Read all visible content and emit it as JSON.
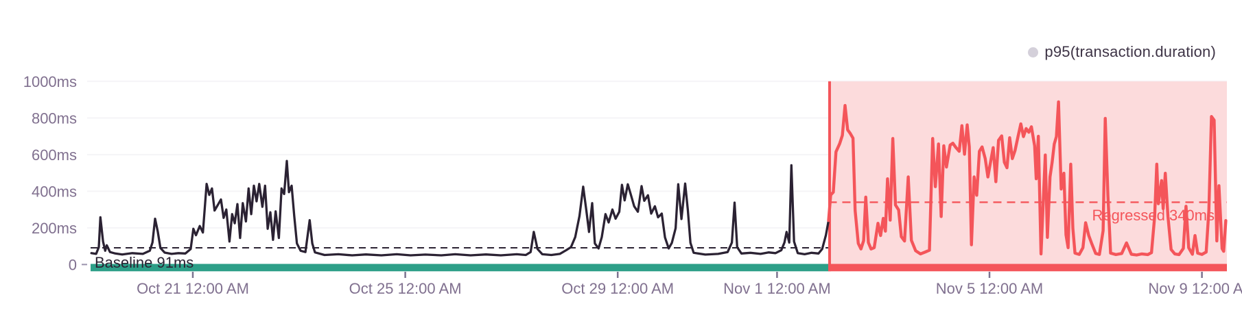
{
  "legend": {
    "label": "p95(transaction.duration)",
    "marker_color": "#d4d0da"
  },
  "colors": {
    "series_dark": "#2b2233",
    "series_red": "#f4555a",
    "regression_fill": "#fcdbdc",
    "baseline_bar_green": "#2d9f88",
    "grid_line": "#f5f4f7",
    "axis_label": "#80708f",
    "tick_mark": "#7c7490",
    "annotation_dark_text": "#2b2233",
    "annotation_red_text": "#f4555a"
  },
  "chart_data": {
    "type": "line",
    "unit": "ms",
    "series_name": "p95(transaction.duration)",
    "y_axis": {
      "range_ms": [
        0,
        1000
      ],
      "grid": true,
      "ticks": [
        {
          "label": "1000ms",
          "value": 1000
        },
        {
          "label": "800ms",
          "value": 800
        },
        {
          "label": "600ms",
          "value": 600
        },
        {
          "label": "400ms",
          "value": 400
        },
        {
          "label": "200ms",
          "value": 200
        },
        {
          "label": "0",
          "value": 0
        }
      ]
    },
    "x_axis": {
      "unit": "days_from_Oct_21_12:00_AM",
      "range_days": [
        -1.91,
        19.45
      ],
      "ticks": [
        {
          "label": "Oct 21 12:00 AM",
          "day": 0
        },
        {
          "label": "Oct 25 12:00 AM",
          "day": 4
        },
        {
          "label": "Oct 29 12:00 AM",
          "day": 8
        },
        {
          "label": "Nov 1 12:00 AM",
          "day": 11
        },
        {
          "label": "Nov 5 12:00 AM",
          "day": 15
        },
        {
          "label": "Nov 9 12:00 AM",
          "day": 19
        }
      ]
    },
    "baseline": {
      "label": "Baseline 91ms",
      "value_ms": 91
    },
    "regression": {
      "label": "Regressed 340ms",
      "value_ms": 340,
      "start_day": 11.97
    },
    "legend_position": "top-right",
    "segments": {
      "baseline_points": [
        [
          -1.91,
          62
        ],
        [
          -1.82,
          58
        ],
        [
          -1.77,
          95
        ],
        [
          -1.74,
          258
        ],
        [
          -1.69,
          125
        ],
        [
          -1.65,
          75
        ],
        [
          -1.62,
          105
        ],
        [
          -1.56,
          68
        ],
        [
          -1.46,
          60
        ],
        [
          -1.33,
          55
        ],
        [
          -1.14,
          62
        ],
        [
          -0.94,
          58
        ],
        [
          -0.81,
          75
        ],
        [
          -0.76,
          120
        ],
        [
          -0.71,
          250
        ],
        [
          -0.66,
          180
        ],
        [
          -0.61,
          90
        ],
        [
          -0.53,
          65
        ],
        [
          -0.4,
          58
        ],
        [
          -0.27,
          62
        ],
        [
          -0.14,
          60
        ],
        [
          -0.04,
          85
        ],
        [
          0.01,
          195
        ],
        [
          0.06,
          160
        ],
        [
          0.13,
          210
        ],
        [
          0.19,
          175
        ],
        [
          0.26,
          440
        ],
        [
          0.31,
          380
        ],
        [
          0.36,
          415
        ],
        [
          0.41,
          295
        ],
        [
          0.48,
          330
        ],
        [
          0.53,
          355
        ],
        [
          0.58,
          255
        ],
        [
          0.63,
          300
        ],
        [
          0.69,
          125
        ],
        [
          0.74,
          275
        ],
        [
          0.79,
          225
        ],
        [
          0.84,
          330
        ],
        [
          0.89,
          145
        ],
        [
          0.94,
          335
        ],
        [
          1.0,
          235
        ],
        [
          1.05,
          415
        ],
        [
          1.1,
          275
        ],
        [
          1.15,
          430
        ],
        [
          1.2,
          345
        ],
        [
          1.25,
          440
        ],
        [
          1.31,
          315
        ],
        [
          1.36,
          430
        ],
        [
          1.41,
          195
        ],
        [
          1.46,
          285
        ],
        [
          1.51,
          135
        ],
        [
          1.56,
          290
        ],
        [
          1.62,
          145
        ],
        [
          1.67,
          415
        ],
        [
          1.72,
          385
        ],
        [
          1.77,
          565
        ],
        [
          1.81,
          395
        ],
        [
          1.86,
          430
        ],
        [
          1.91,
          265
        ],
        [
          1.96,
          115
        ],
        [
          2.03,
          75
        ],
        [
          2.12,
          68
        ],
        [
          2.2,
          242
        ],
        [
          2.25,
          115
        ],
        [
          2.3,
          66
        ],
        [
          2.48,
          52
        ],
        [
          2.74,
          56
        ],
        [
          3.0,
          50
        ],
        [
          3.26,
          55
        ],
        [
          3.55,
          50
        ],
        [
          3.84,
          56
        ],
        [
          4.1,
          50
        ],
        [
          4.38,
          54
        ],
        [
          4.68,
          50
        ],
        [
          4.94,
          56
        ],
        [
          5.23,
          50
        ],
        [
          5.52,
          55
        ],
        [
          5.8,
          50
        ],
        [
          6.1,
          56
        ],
        [
          6.27,
          52
        ],
        [
          6.36,
          68
        ],
        [
          6.42,
          178
        ],
        [
          6.49,
          85
        ],
        [
          6.58,
          56
        ],
        [
          6.75,
          52
        ],
        [
          6.91,
          58
        ],
        [
          7.03,
          78
        ],
        [
          7.12,
          95
        ],
        [
          7.2,
          150
        ],
        [
          7.28,
          265
        ],
        [
          7.35,
          425
        ],
        [
          7.41,
          295
        ],
        [
          7.46,
          178
        ],
        [
          7.52,
          335
        ],
        [
          7.57,
          115
        ],
        [
          7.64,
          88
        ],
        [
          7.7,
          150
        ],
        [
          7.77,
          275
        ],
        [
          7.83,
          230
        ],
        [
          7.9,
          300
        ],
        [
          7.96,
          250
        ],
        [
          8.03,
          288
        ],
        [
          8.08,
          435
        ],
        [
          8.13,
          350
        ],
        [
          8.19,
          438
        ],
        [
          8.25,
          378
        ],
        [
          8.31,
          318
        ],
        [
          8.38,
          288
        ],
        [
          8.45,
          428
        ],
        [
          8.5,
          348
        ],
        [
          8.57,
          378
        ],
        [
          8.63,
          278
        ],
        [
          8.7,
          318
        ],
        [
          8.76,
          258
        ],
        [
          8.83,
          278
        ],
        [
          8.89,
          148
        ],
        [
          8.96,
          88
        ],
        [
          9.02,
          118
        ],
        [
          9.09,
          198
        ],
        [
          9.14,
          438
        ],
        [
          9.2,
          248
        ],
        [
          9.27,
          442
        ],
        [
          9.32,
          298
        ],
        [
          9.37,
          118
        ],
        [
          9.43,
          64
        ],
        [
          9.65,
          54
        ],
        [
          9.89,
          58
        ],
        [
          10.07,
          68
        ],
        [
          10.15,
          120
        ],
        [
          10.2,
          338
        ],
        [
          10.25,
          95
        ],
        [
          10.33,
          60
        ],
        [
          10.5,
          64
        ],
        [
          10.69,
          58
        ],
        [
          10.84,
          66
        ],
        [
          10.97,
          62
        ],
        [
          11.08,
          78
        ],
        [
          11.14,
          120
        ],
        [
          11.18,
          178
        ],
        [
          11.23,
          120
        ],
        [
          11.27,
          542
        ],
        [
          11.32,
          125
        ],
        [
          11.39,
          62
        ],
        [
          11.52,
          56
        ],
        [
          11.65,
          64
        ],
        [
          11.78,
          60
        ],
        [
          11.85,
          85
        ],
        [
          11.92,
          160
        ],
        [
          11.97,
          240
        ]
      ],
      "regressed_points": [
        [
          11.97,
          240
        ],
        [
          12.01,
          380
        ],
        [
          12.06,
          395
        ],
        [
          12.11,
          615
        ],
        [
          12.18,
          660
        ],
        [
          12.23,
          705
        ],
        [
          12.28,
          868
        ],
        [
          12.33,
          735
        ],
        [
          12.38,
          715
        ],
        [
          12.43,
          690
        ],
        [
          12.47,
          295
        ],
        [
          12.53,
          115
        ],
        [
          12.58,
          85
        ],
        [
          12.63,
          130
        ],
        [
          12.67,
          368
        ],
        [
          12.72,
          120
        ],
        [
          12.77,
          85
        ],
        [
          12.83,
          92
        ],
        [
          12.9,
          225
        ],
        [
          12.95,
          158
        ],
        [
          13.0,
          252
        ],
        [
          13.04,
          182
        ],
        [
          13.08,
          468
        ],
        [
          13.13,
          242
        ],
        [
          13.18,
          688
        ],
        [
          13.23,
          325
        ],
        [
          13.29,
          298
        ],
        [
          13.34,
          152
        ],
        [
          13.4,
          128
        ],
        [
          13.47,
          478
        ],
        [
          13.53,
          132
        ],
        [
          13.61,
          75
        ],
        [
          13.7,
          58
        ],
        [
          13.79,
          68
        ],
        [
          13.87,
          78
        ],
        [
          13.93,
          688
        ],
        [
          13.98,
          425
        ],
        [
          14.04,
          658
        ],
        [
          14.09,
          262
        ],
        [
          14.14,
          648
        ],
        [
          14.19,
          532
        ],
        [
          14.26,
          652
        ],
        [
          14.31,
          662
        ],
        [
          14.37,
          638
        ],
        [
          14.43,
          618
        ],
        [
          14.48,
          758
        ],
        [
          14.53,
          602
        ],
        [
          14.58,
          762
        ],
        [
          14.62,
          642
        ],
        [
          14.66,
          108
        ],
        [
          14.71,
          478
        ],
        [
          14.76,
          378
        ],
        [
          14.81,
          618
        ],
        [
          14.86,
          642
        ],
        [
          14.92,
          578
        ],
        [
          14.97,
          478
        ],
        [
          15.02,
          558
        ],
        [
          15.07,
          638
        ],
        [
          15.12,
          452
        ],
        [
          15.17,
          678
        ],
        [
          15.23,
          702
        ],
        [
          15.28,
          558
        ],
        [
          15.33,
          528
        ],
        [
          15.38,
          692
        ],
        [
          15.43,
          578
        ],
        [
          15.48,
          622
        ],
        [
          15.54,
          702
        ],
        [
          15.59,
          768
        ],
        [
          15.64,
          698
        ],
        [
          15.69,
          742
        ],
        [
          15.74,
          722
        ],
        [
          15.79,
          752
        ],
        [
          15.85,
          648
        ],
        [
          15.88,
          468
        ],
        [
          15.92,
          700
        ],
        [
          15.97,
          58
        ],
        [
          16.05,
          598
        ],
        [
          16.09,
          148
        ],
        [
          16.14,
          478
        ],
        [
          16.18,
          558
        ],
        [
          16.22,
          658
        ],
        [
          16.26,
          698
        ],
        [
          16.3,
          888
        ],
        [
          16.35,
          412
        ],
        [
          16.4,
          498
        ],
        [
          16.44,
          162
        ],
        [
          16.48,
          92
        ],
        [
          16.53,
          548
        ],
        [
          16.57,
          198
        ],
        [
          16.61,
          62
        ],
        [
          16.69,
          55
        ],
        [
          16.76,
          92
        ],
        [
          16.81,
          228
        ],
        [
          16.87,
          158
        ],
        [
          16.92,
          118
        ],
        [
          17.0,
          60
        ],
        [
          17.07,
          55
        ],
        [
          17.14,
          185
        ],
        [
          17.18,
          798
        ],
        [
          17.23,
          375
        ],
        [
          17.28,
          62
        ],
        [
          17.38,
          54
        ],
        [
          17.49,
          60
        ],
        [
          17.58,
          118
        ],
        [
          17.67,
          56
        ],
        [
          17.77,
          52
        ],
        [
          17.87,
          58
        ],
        [
          17.98,
          54
        ],
        [
          18.05,
          65
        ],
        [
          18.11,
          262
        ],
        [
          18.15,
          548
        ],
        [
          18.18,
          332
        ],
        [
          18.24,
          458
        ],
        [
          18.27,
          305
        ],
        [
          18.31,
          498
        ],
        [
          18.36,
          262
        ],
        [
          18.42,
          82
        ],
        [
          18.49,
          58
        ],
        [
          18.57,
          54
        ],
        [
          18.65,
          88
        ],
        [
          18.7,
          318
        ],
        [
          18.75,
          92
        ],
        [
          18.82,
          56
        ],
        [
          18.87,
          158
        ],
        [
          18.92,
          62
        ],
        [
          19.0,
          55
        ],
        [
          19.08,
          68
        ],
        [
          19.13,
          295
        ],
        [
          19.18,
          808
        ],
        [
          19.23,
          788
        ],
        [
          19.28,
          129
        ],
        [
          19.32,
          430
        ],
        [
          19.38,
          87
        ],
        [
          19.41,
          72
        ],
        [
          19.45,
          240
        ]
      ]
    }
  }
}
